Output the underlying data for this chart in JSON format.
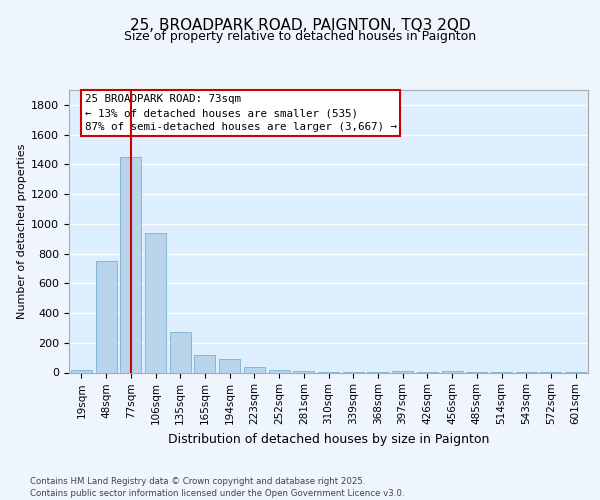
{
  "title1": "25, BROADPARK ROAD, PAIGNTON, TQ3 2QD",
  "title2": "Size of property relative to detached houses in Paignton",
  "xlabel": "Distribution of detached houses by size in Paignton",
  "ylabel": "Number of detached properties",
  "categories": [
    "19sqm",
    "48sqm",
    "77sqm",
    "106sqm",
    "135sqm",
    "165sqm",
    "194sqm",
    "223sqm",
    "252sqm",
    "281sqm",
    "310sqm",
    "339sqm",
    "368sqm",
    "397sqm",
    "426sqm",
    "456sqm",
    "485sqm",
    "514sqm",
    "543sqm",
    "572sqm",
    "601sqm"
  ],
  "values": [
    18,
    750,
    1450,
    940,
    270,
    115,
    90,
    40,
    20,
    10,
    6,
    3,
    2,
    8,
    5,
    8,
    2,
    2,
    1,
    1,
    1
  ],
  "bar_color": "#b8d4ea",
  "bar_edge_color": "#7aafd4",
  "bg_color": "#ddeeff",
  "grid_color": "#ffffff",
  "vline_x": 2,
  "vline_color": "#cc0000",
  "annotation_text": "25 BROADPARK ROAD: 73sqm\n← 13% of detached houses are smaller (535)\n87% of semi-detached houses are larger (3,667) →",
  "annotation_box_color": "#ffffff",
  "annotation_box_edge": "#cc0000",
  "ylim": [
    0,
    1900
  ],
  "yticks": [
    0,
    200,
    400,
    600,
    800,
    1000,
    1200,
    1400,
    1600,
    1800
  ],
  "footer": "Contains HM Land Registry data © Crown copyright and database right 2025.\nContains public sector information licensed under the Open Government Licence v3.0.",
  "fig_bg": "#eef5fc"
}
